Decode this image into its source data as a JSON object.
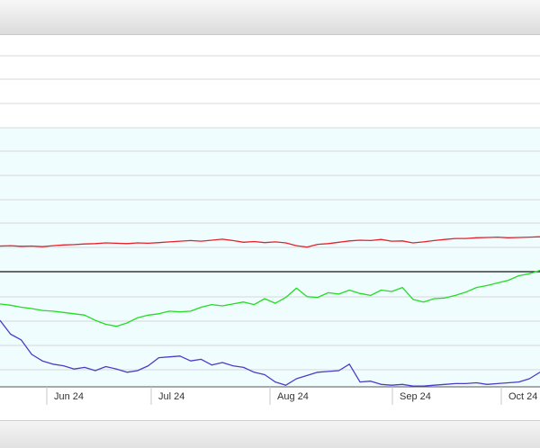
{
  "chart_data": {
    "type": "line",
    "grid": true,
    "x_ticks": [
      "Jun 24",
      "Jul 24",
      "Aug 24",
      "Sep 24",
      "Oct 24"
    ],
    "colors": {
      "red_line": "#e8202a",
      "green_line": "#22dd22",
      "blue_line": "#4a3cc8",
      "band_fill": "#f0fdff",
      "grid": "#d8d8d8",
      "divider": "#111111"
    },
    "series": [
      {
        "key": "red",
        "values": [
          0.33,
          0.34,
          0.32,
          0.33,
          0.31,
          0.34,
          0.36,
          0.37,
          0.39,
          0.4,
          0.42,
          0.41,
          0.4,
          0.42,
          0.41,
          0.43,
          0.45,
          0.47,
          0.49,
          0.47,
          0.5,
          0.53,
          0.49,
          0.44,
          0.46,
          0.43,
          0.45,
          0.42,
          0.34,
          0.3,
          0.38,
          0.4,
          0.44,
          0.48,
          0.5,
          0.49,
          0.52,
          0.47,
          0.48,
          0.42,
          0.45,
          0.49,
          0.52,
          0.55,
          0.55,
          0.57,
          0.58,
          0.59,
          0.57,
          0.58,
          0.59,
          0.6
        ]
      },
      {
        "key": "green",
        "values": [
          0.55,
          0.53,
          0.5,
          0.48,
          0.45,
          0.44,
          0.42,
          0.4,
          0.38,
          0.3,
          0.24,
          0.21,
          0.26,
          0.34,
          0.38,
          0.4,
          0.44,
          0.43,
          0.44,
          0.5,
          0.54,
          0.52,
          0.55,
          0.58,
          0.54,
          0.63,
          0.56,
          0.65,
          0.79,
          0.66,
          0.65,
          0.72,
          0.7,
          0.76,
          0.71,
          0.68,
          0.76,
          0.74,
          0.8,
          0.62,
          0.58,
          0.63,
          0.64,
          0.68,
          0.73,
          0.8,
          0.83,
          0.87,
          0.91,
          0.98,
          1.01,
          1.06
        ]
      },
      {
        "key": "blue",
        "values": [
          0.82,
          0.65,
          0.58,
          0.4,
          0.32,
          0.28,
          0.26,
          0.22,
          0.24,
          0.2,
          0.25,
          0.22,
          0.18,
          0.2,
          0.26,
          0.36,
          0.37,
          0.38,
          0.32,
          0.34,
          0.27,
          0.3,
          0.26,
          0.24,
          0.18,
          0.15,
          0.06,
          0.02,
          0.1,
          0.14,
          0.18,
          0.19,
          0.2,
          0.28,
          0.06,
          0.07,
          0.03,
          0.02,
          0.03,
          0.01,
          0.01,
          0.02,
          0.03,
          0.04,
          0.04,
          0.05,
          0.03,
          0.04,
          0.05,
          0.06,
          0.1,
          0.18
        ]
      }
    ]
  }
}
